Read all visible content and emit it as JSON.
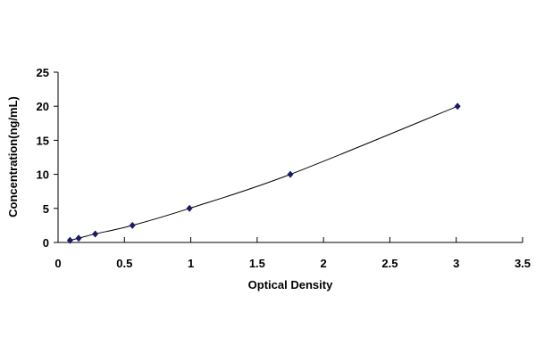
{
  "chart_data": {
    "type": "scatter",
    "title": "",
    "xlabel": "Optical Density",
    "ylabel": "Concentration(ng/mL)",
    "xlim": [
      0,
      3.5
    ],
    "ylim": [
      0,
      25
    ],
    "xticks": [
      "0",
      "0.5",
      "1",
      "1.5",
      "2",
      "2.5",
      "3",
      "3.5"
    ],
    "yticks": [
      "0",
      "5",
      "10",
      "15",
      "20",
      "25"
    ],
    "grid": false,
    "trendline": "smooth curve",
    "marker_color": "#1a1a66",
    "series": [
      {
        "x": [
          0.09,
          0.155,
          0.28,
          0.56,
          0.99,
          1.75,
          3.01
        ],
        "y": [
          0.312,
          0.625,
          1.25,
          2.5,
          5,
          10,
          20
        ]
      }
    ]
  }
}
